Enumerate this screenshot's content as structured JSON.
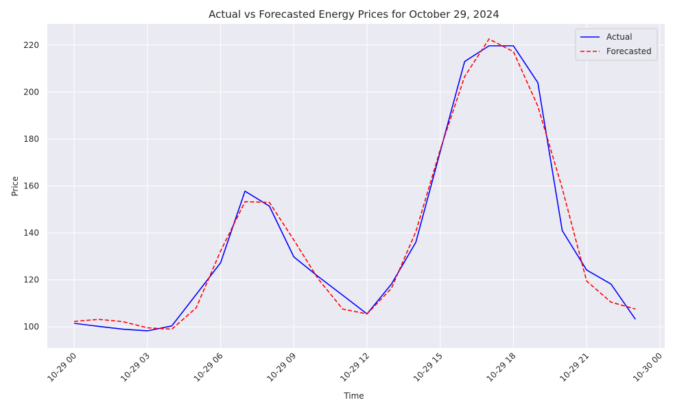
{
  "chart_data": {
    "type": "line",
    "title": "Actual vs Forecasted Energy Prices for October 29, 2024",
    "xlabel": "Time",
    "ylabel": "Price",
    "x_unit": "hour of 2024-10-29",
    "x": [
      0,
      1,
      2,
      3,
      4,
      5,
      6,
      7,
      8,
      9,
      10,
      11,
      12,
      13,
      14,
      15,
      16,
      17,
      18,
      19,
      20,
      21,
      22,
      23
    ],
    "xlim": [
      -1.1,
      24.2
    ],
    "ylim": [
      91,
      229
    ],
    "x_ticks": [
      0,
      3,
      6,
      9,
      12,
      15,
      18,
      21,
      24
    ],
    "x_tick_labels": [
      "10-29 00",
      "10-29 03",
      "10-29 06",
      "10-29 09",
      "10-29 12",
      "10-29 15",
      "10-29 18",
      "10-29 21",
      "10-30 00"
    ],
    "y_ticks": [
      100,
      120,
      140,
      160,
      180,
      200,
      220
    ],
    "y_tick_labels": [
      "100",
      "120",
      "140",
      "160",
      "180",
      "200",
      "220"
    ],
    "grid": true,
    "legend_position": "top-right",
    "series": [
      {
        "name": "Actual",
        "color": "#0000ff",
        "style": "solid",
        "values": [
          101.5,
          100.2,
          99.0,
          98.3,
          100.4,
          113.8,
          127.3,
          157.8,
          151.4,
          129.8,
          121.4,
          113.5,
          105.5,
          118.2,
          136.0,
          174.6,
          213.0,
          219.7,
          219.7,
          204.0,
          141.0,
          124.2,
          118.2,
          103.2
        ]
      },
      {
        "name": "Forecasted",
        "color": "#ff0000",
        "style": "dashed",
        "values": [
          102.3,
          103.2,
          102.2,
          99.6,
          99.0,
          108.1,
          132.3,
          153.3,
          153.0,
          137.0,
          120.4,
          107.6,
          105.5,
          116.4,
          140.5,
          175.5,
          206.6,
          222.6,
          217.2,
          194.0,
          159.0,
          119.5,
          110.5,
          107.6
        ]
      }
    ]
  }
}
